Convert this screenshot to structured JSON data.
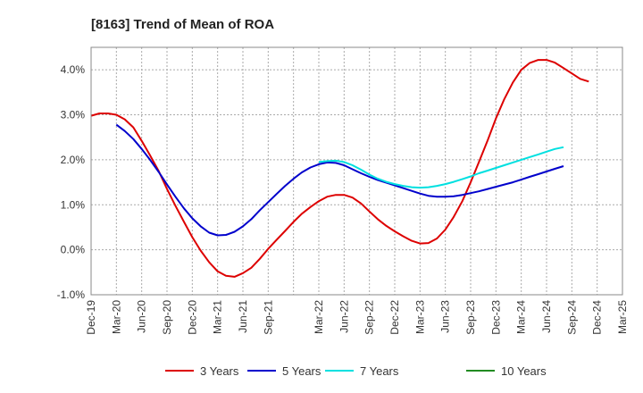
{
  "chart_data": {
    "type": "line",
    "title": "[8163]  Trend of Mean of ROA",
    "xlabel": "",
    "ylabel": "",
    "ylim": [
      -1.0,
      4.5
    ],
    "y_ticks": [
      -1.0,
      0.0,
      1.0,
      2.0,
      3.0,
      4.0
    ],
    "y_tick_labels": [
      "-1.0%",
      "0.0%",
      "1.0%",
      "2.0%",
      "3.0%",
      "4.0%"
    ],
    "x_ticks": [
      "Dec-19",
      "Mar-20",
      "Jun-20",
      "Sep-20",
      "Dec-20",
      "Mar-21",
      "Jun-21",
      "Sep-21",
      "Mar-22",
      "Jun-22",
      "Sep-22",
      "Dec-22",
      "Mar-23",
      "Jun-23",
      "Sep-23",
      "Dec-23",
      "Mar-24",
      "Jun-24",
      "Sep-24",
      "Dec-24",
      "Mar-25"
    ],
    "x_tick_positions": [
      0,
      1,
      2,
      3,
      4,
      5,
      6,
      7,
      9,
      10,
      11,
      12,
      13,
      14,
      15,
      16,
      17,
      18,
      19,
      20,
      21
    ],
    "x_range": [
      0,
      21
    ],
    "grid": true,
    "legend_position": "bottom",
    "series": [
      {
        "name": "3 Years",
        "color": "#dd0000",
        "points": [
          [
            0,
            2.98
          ],
          [
            0.33,
            3.03
          ],
          [
            0.67,
            3.03
          ],
          [
            1,
            3.0
          ],
          [
            1.33,
            2.9
          ],
          [
            1.67,
            2.72
          ],
          [
            2,
            2.42
          ],
          [
            2.33,
            2.1
          ],
          [
            2.67,
            1.75
          ],
          [
            3,
            1.35
          ],
          [
            3.33,
            0.98
          ],
          [
            3.67,
            0.62
          ],
          [
            4,
            0.28
          ],
          [
            4.33,
            -0.02
          ],
          [
            4.67,
            -0.28
          ],
          [
            5,
            -0.48
          ],
          [
            5.33,
            -0.58
          ],
          [
            5.67,
            -0.6
          ],
          [
            6,
            -0.52
          ],
          [
            6.33,
            -0.4
          ],
          [
            6.67,
            -0.2
          ],
          [
            7,
            0.02
          ],
          [
            7.33,
            0.22
          ],
          [
            7.67,
            0.42
          ],
          [
            8,
            0.62
          ],
          [
            8.33,
            0.8
          ],
          [
            8.67,
            0.95
          ],
          [
            9,
            1.08
          ],
          [
            9.33,
            1.18
          ],
          [
            9.67,
            1.22
          ],
          [
            10,
            1.22
          ],
          [
            10.33,
            1.16
          ],
          [
            10.67,
            1.03
          ],
          [
            11,
            0.85
          ],
          [
            11.33,
            0.68
          ],
          [
            11.67,
            0.53
          ],
          [
            12,
            0.41
          ],
          [
            12.33,
            0.3
          ],
          [
            12.67,
            0.2
          ],
          [
            13,
            0.14
          ],
          [
            13.33,
            0.15
          ],
          [
            13.67,
            0.25
          ],
          [
            14,
            0.45
          ],
          [
            14.33,
            0.73
          ],
          [
            14.67,
            1.08
          ],
          [
            15,
            1.5
          ],
          [
            15.33,
            1.95
          ],
          [
            15.67,
            2.43
          ],
          [
            16,
            2.92
          ],
          [
            16.33,
            3.35
          ],
          [
            16.67,
            3.72
          ],
          [
            17,
            4.0
          ],
          [
            17.33,
            4.15
          ],
          [
            17.67,
            4.22
          ],
          [
            18,
            4.22
          ],
          [
            18.33,
            4.16
          ],
          [
            18.67,
            4.04
          ],
          [
            19,
            3.92
          ],
          [
            19.33,
            3.8
          ],
          [
            19.67,
            3.74
          ]
        ]
      },
      {
        "name": "5 Years",
        "color": "#0000cc",
        "points": [
          [
            1,
            2.78
          ],
          [
            1.33,
            2.64
          ],
          [
            1.67,
            2.46
          ],
          [
            2,
            2.24
          ],
          [
            2.33,
            2.0
          ],
          [
            2.67,
            1.73
          ],
          [
            3,
            1.45
          ],
          [
            3.33,
            1.18
          ],
          [
            3.67,
            0.92
          ],
          [
            4,
            0.7
          ],
          [
            4.33,
            0.52
          ],
          [
            4.67,
            0.38
          ],
          [
            5,
            0.32
          ],
          [
            5.33,
            0.33
          ],
          [
            5.67,
            0.4
          ],
          [
            6,
            0.52
          ],
          [
            6.33,
            0.68
          ],
          [
            6.67,
            0.88
          ],
          [
            7,
            1.06
          ],
          [
            7.33,
            1.24
          ],
          [
            7.67,
            1.42
          ],
          [
            8,
            1.58
          ],
          [
            8.33,
            1.72
          ],
          [
            8.67,
            1.83
          ],
          [
            9,
            1.9
          ],
          [
            9.33,
            1.94
          ],
          [
            9.67,
            1.93
          ],
          [
            10,
            1.88
          ],
          [
            10.33,
            1.79
          ],
          [
            10.67,
            1.7
          ],
          [
            11,
            1.62
          ],
          [
            11.33,
            1.55
          ],
          [
            11.67,
            1.49
          ],
          [
            12,
            1.43
          ],
          [
            12.33,
            1.37
          ],
          [
            12.67,
            1.31
          ],
          [
            13,
            1.25
          ],
          [
            13.33,
            1.2
          ],
          [
            13.67,
            1.18
          ],
          [
            14,
            1.18
          ],
          [
            14.33,
            1.19
          ],
          [
            14.67,
            1.22
          ],
          [
            15,
            1.26
          ],
          [
            15.33,
            1.3
          ],
          [
            15.67,
            1.35
          ],
          [
            16,
            1.4
          ],
          [
            16.33,
            1.45
          ],
          [
            16.67,
            1.5
          ],
          [
            17,
            1.56
          ],
          [
            17.33,
            1.62
          ],
          [
            17.67,
            1.68
          ],
          [
            18,
            1.74
          ],
          [
            18.33,
            1.8
          ],
          [
            18.67,
            1.86
          ]
        ]
      },
      {
        "name": "7 Years",
        "color": "#00e0e0",
        "points": [
          [
            9,
            1.95
          ],
          [
            9.33,
            1.97
          ],
          [
            9.67,
            1.98
          ],
          [
            10,
            1.95
          ],
          [
            10.33,
            1.88
          ],
          [
            10.67,
            1.78
          ],
          [
            11,
            1.67
          ],
          [
            11.33,
            1.58
          ],
          [
            11.67,
            1.51
          ],
          [
            12,
            1.46
          ],
          [
            12.33,
            1.42
          ],
          [
            12.67,
            1.39
          ],
          [
            13,
            1.38
          ],
          [
            13.33,
            1.39
          ],
          [
            13.67,
            1.42
          ],
          [
            14,
            1.46
          ],
          [
            14.33,
            1.51
          ],
          [
            14.67,
            1.57
          ],
          [
            15,
            1.63
          ],
          [
            15.33,
            1.7
          ],
          [
            15.67,
            1.76
          ],
          [
            16,
            1.82
          ],
          [
            16.33,
            1.88
          ],
          [
            16.67,
            1.94
          ],
          [
            17,
            2.0
          ],
          [
            17.33,
            2.06
          ],
          [
            17.67,
            2.12
          ],
          [
            18,
            2.18
          ],
          [
            18.33,
            2.24
          ],
          [
            18.67,
            2.28
          ]
        ]
      },
      {
        "name": "10 Years",
        "color": "#228B22",
        "points": []
      }
    ]
  }
}
